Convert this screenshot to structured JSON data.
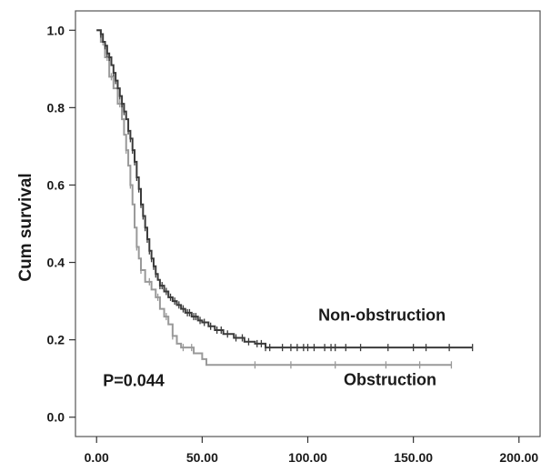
{
  "chart_data": {
    "type": "line",
    "subtype": "kaplan-meier step curves",
    "title": "",
    "xlabel": "",
    "ylabel": "Cum survival",
    "xlim": [
      -10,
      210
    ],
    "ylim": [
      -0.05,
      1.05
    ],
    "x_ticks": [
      0,
      50,
      100,
      150,
      200
    ],
    "x_tick_labels": [
      "0.00",
      "50.00",
      "100.00",
      "150.00",
      "200.00"
    ],
    "y_ticks": [
      0.0,
      0.2,
      0.4,
      0.6,
      0.8,
      1.0
    ],
    "y_tick_labels": [
      "0.0",
      "0.2",
      "0.4",
      "0.6",
      "0.8",
      "1.0"
    ],
    "grid": false,
    "annotations": [
      {
        "text": "P=0.044",
        "x": 3,
        "y": 0.08
      },
      {
        "text": "Non-obstruction",
        "x": 105,
        "y": 0.25
      },
      {
        "text": "Obstruction",
        "x": 117,
        "y": 0.083
      }
    ],
    "series": [
      {
        "name": "Non-obstruction",
        "color": "#3a3a3a",
        "points": [
          [
            0,
            1.0
          ],
          [
            2,
            0.99
          ],
          [
            3,
            0.97
          ],
          [
            4,
            0.96
          ],
          [
            5,
            0.94
          ],
          [
            6,
            0.93
          ],
          [
            7,
            0.91
          ],
          [
            8,
            0.89
          ],
          [
            9,
            0.87
          ],
          [
            10,
            0.85
          ],
          [
            11,
            0.83
          ],
          [
            12,
            0.81
          ],
          [
            13,
            0.79
          ],
          [
            14,
            0.77
          ],
          [
            15,
            0.74
          ],
          [
            16,
            0.72
          ],
          [
            17,
            0.69
          ],
          [
            18,
            0.66
          ],
          [
            19,
            0.62
          ],
          [
            20,
            0.59
          ],
          [
            21,
            0.55
          ],
          [
            22,
            0.52
          ],
          [
            23,
            0.49
          ],
          [
            24,
            0.46
          ],
          [
            25,
            0.43
          ],
          [
            26,
            0.41
          ],
          [
            27,
            0.39
          ],
          [
            28,
            0.37
          ],
          [
            29,
            0.355
          ],
          [
            30,
            0.34
          ],
          [
            32,
            0.325
          ],
          [
            34,
            0.31
          ],
          [
            36,
            0.3
          ],
          [
            38,
            0.29
          ],
          [
            40,
            0.28
          ],
          [
            42,
            0.27
          ],
          [
            45,
            0.26
          ],
          [
            48,
            0.25
          ],
          [
            50,
            0.245
          ],
          [
            53,
            0.235
          ],
          [
            56,
            0.225
          ],
          [
            60,
            0.215
          ],
          [
            65,
            0.205
          ],
          [
            70,
            0.195
          ],
          [
            75,
            0.19
          ],
          [
            80,
            0.18
          ],
          [
            178,
            0.18
          ]
        ],
        "censor_x": [
          2,
          4,
          5,
          6,
          8,
          9,
          11,
          12,
          13,
          15,
          16,
          17,
          18,
          19,
          20,
          21,
          22,
          23,
          24,
          25,
          26,
          27,
          28,
          30,
          31,
          33,
          35,
          37,
          39,
          41,
          43,
          44,
          46,
          47,
          49,
          51,
          54,
          57,
          59,
          62,
          66,
          69,
          72,
          76,
          78,
          80,
          82,
          88,
          92,
          95,
          98,
          100,
          103,
          108,
          111,
          113,
          118,
          125,
          138,
          150,
          156,
          167,
          178
        ]
      },
      {
        "name": "Obstruction",
        "color": "#999999",
        "points": [
          [
            0,
            1.0
          ],
          [
            2,
            0.97
          ],
          [
            4,
            0.93
          ],
          [
            6,
            0.88
          ],
          [
            8,
            0.85
          ],
          [
            10,
            0.81
          ],
          [
            12,
            0.77
          ],
          [
            13,
            0.73
          ],
          [
            14,
            0.69
          ],
          [
            15,
            0.65
          ],
          [
            16,
            0.6
          ],
          [
            17,
            0.55
          ],
          [
            18,
            0.49
          ],
          [
            19,
            0.44
          ],
          [
            20,
            0.41
          ],
          [
            21,
            0.38
          ],
          [
            23,
            0.35
          ],
          [
            26,
            0.33
          ],
          [
            28,
            0.31
          ],
          [
            30,
            0.28
          ],
          [
            32,
            0.26
          ],
          [
            34,
            0.24
          ],
          [
            36,
            0.21
          ],
          [
            38,
            0.19
          ],
          [
            40,
            0.18
          ],
          [
            46,
            0.165
          ],
          [
            50,
            0.15
          ],
          [
            52,
            0.135
          ],
          [
            168,
            0.135
          ]
        ],
        "censor_x": [
          3,
          5,
          7,
          11,
          14,
          16,
          19,
          21,
          25,
          29,
          33,
          36,
          41,
          45,
          75,
          92,
          113,
          137,
          153,
          168
        ]
      }
    ]
  }
}
